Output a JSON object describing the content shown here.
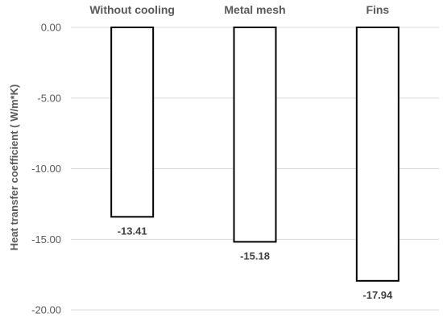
{
  "chart_data": {
    "type": "bar",
    "categories": [
      "Without cooling",
      "Metal mesh",
      "Fins"
    ],
    "values": [
      -13.41,
      -15.18,
      -17.94
    ],
    "data_labels": [
      "-13.41",
      "-15.18",
      "-17.94"
    ],
    "title": "",
    "xlabel": "",
    "ylabel": "Heat transfer coefficient ( W/m*K)",
    "ylim": [
      -20,
      0
    ],
    "yticks": [
      0,
      -5,
      -10,
      -15,
      -20
    ],
    "ytick_labels": [
      "0.00",
      "-5.00",
      "-10.00",
      "-15.00",
      "-20.00"
    ],
    "category_axis_position": "top",
    "grid": true,
    "legend": "none",
    "colors": {
      "bar_fill": "#ffffff",
      "bar_stroke": "#000000",
      "grid": "#d9d9d9",
      "text": "#595959"
    }
  }
}
